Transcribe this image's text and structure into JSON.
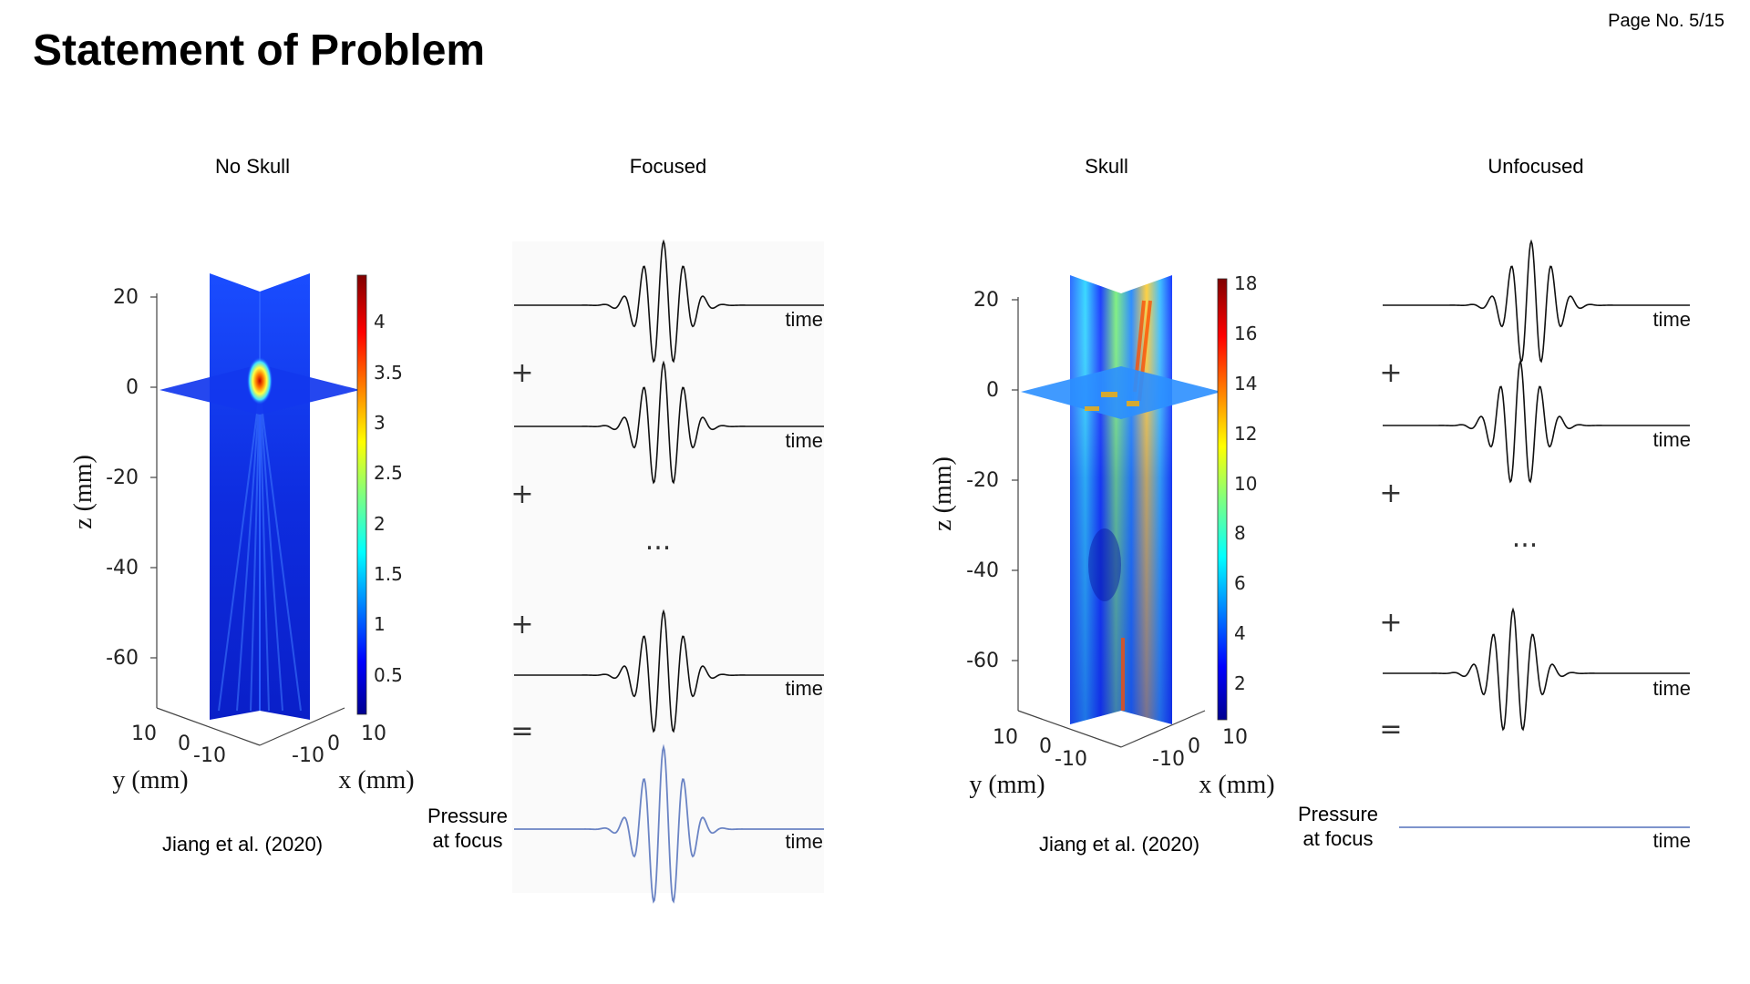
{
  "slide": {
    "title": "Statement of Problem",
    "page_number": "Page No. 5/15"
  },
  "columns": [
    {
      "id": "no-skull",
      "title": "No Skull"
    },
    {
      "id": "focused",
      "title": "Focused"
    },
    {
      "id": "skull",
      "title": "Skull"
    },
    {
      "id": "unfocused",
      "title": "Unfocused"
    }
  ],
  "citations": {
    "no_skull": "Jiang et al. (2020)",
    "skull": "Jiang et al. (2020)"
  },
  "pressure_label": {
    "line1": "Pressure",
    "line2": "at focus"
  },
  "waveform_label": "time",
  "operators": {
    "plus": "+",
    "ellipsis": "...",
    "equals": "="
  },
  "plot_no_skull": {
    "axis_labels": {
      "z": "z (mm)",
      "y": "y (mm)",
      "x": "x (mm)"
    },
    "z_ticks": [
      "20",
      "0",
      "-20",
      "-40",
      "-60"
    ],
    "y_ticks": [
      "10",
      "0",
      "-10"
    ],
    "x_ticks": [
      "-10",
      "0",
      "10"
    ],
    "colorbar_ticks": [
      "4",
      "3.5",
      "3",
      "2.5",
      "2",
      "1.5",
      "1",
      "0.5"
    ],
    "colorbar_range": [
      0,
      4.5
    ]
  },
  "plot_skull": {
    "axis_labels": {
      "z": "z (mm)",
      "y": "y (mm)",
      "x": "x (mm)"
    },
    "z_ticks": [
      "20",
      "0",
      "-20",
      "-40",
      "-60"
    ],
    "y_ticks": [
      "10",
      "0",
      "-10"
    ],
    "x_ticks": [
      "-10",
      "0",
      "10"
    ],
    "colorbar_ticks": [
      "18",
      "16",
      "14",
      "12",
      "10",
      "8",
      "6",
      "4",
      "2"
    ],
    "colorbar_range": [
      0,
      19
    ]
  },
  "colors": {
    "waveform": "#111111",
    "pressure_waveform": "#6b84c4",
    "field_low": "#0a1fd6",
    "field_high": "#b00000"
  }
}
